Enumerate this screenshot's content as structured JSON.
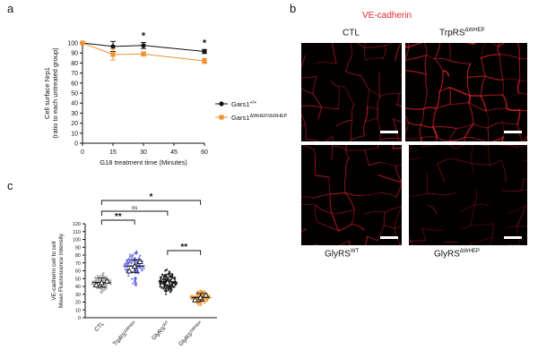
{
  "panels": {
    "a": {
      "letter": "a"
    },
    "b": {
      "letter": "b",
      "title": "VE-cadherin",
      "title_color": "#e3262b"
    },
    "c": {
      "letter": "c"
    }
  },
  "micrographs": {
    "labels": [
      {
        "base": "CTL",
        "sup": ""
      },
      {
        "base": "TrpRS",
        "sup": "ΔWHEP"
      },
      {
        "base": "GlyRS",
        "sup": "WT"
      },
      {
        "base": "GlyRS",
        "sup": "ΔWHEP"
      }
    ],
    "signal_color": "#d4202a"
  },
  "chart_data": [
    {
      "type": "line",
      "xlabel": "G18 treatment time (Minutes)",
      "ylabel_lines": [
        "Cell surface Nrp1",
        "(ratio to each untreated group)"
      ],
      "xlim": [
        0,
        60
      ],
      "ylim": [
        0,
        100
      ],
      "xticks": [
        0,
        15,
        30,
        45,
        60
      ],
      "yticks": [
        0,
        10,
        20,
        30,
        40,
        50,
        60,
        70,
        80,
        90,
        100
      ],
      "x": [
        0,
        15,
        30,
        60
      ],
      "series": [
        {
          "name": "Gars1",
          "name_sup": "+/+",
          "color": "#111111",
          "marker": "circle",
          "values": [
            100,
            96.5,
            97.5,
            91.5
          ],
          "errors": [
            0,
            5,
            3,
            2
          ]
        },
        {
          "name": "Gars1",
          "name_sup": "ΔWHEP/ΔWHEP",
          "color": "#f0922e",
          "marker": "square",
          "values": [
            100,
            88.5,
            89,
            82
          ],
          "errors": [
            0,
            5.5,
            2,
            2.5
          ]
        }
      ],
      "significance": [
        {
          "x": 30,
          "label": "*"
        },
        {
          "x": 60,
          "label": "*"
        }
      ],
      "grid": false,
      "legend_position": "right"
    },
    {
      "type": "scatter",
      "ylabel_lines": [
        "VE-cadherin cell to cell",
        "Mean Fluorescence Intensity"
      ],
      "ylim": [
        0,
        120
      ],
      "yticks": [
        0,
        10,
        20,
        30,
        40,
        50,
        60,
        70,
        80,
        90,
        100,
        110,
        120
      ],
      "categories": [
        {
          "base": "CTL",
          "sup": ""
        },
        {
          "base": "TrpRS",
          "sup": "ΔWHEP"
        },
        {
          "base": "GlyRS",
          "sup": "WT"
        },
        {
          "base": "GlyRS",
          "sup": "ΔWHEP"
        }
      ],
      "groups": [
        {
          "color": "#a7a7a7",
          "mean": 45,
          "sd": 6,
          "spread": 8,
          "n": 90,
          "replicate_means": [
            42,
            45,
            47
          ]
        },
        {
          "color": "#5b5fe8",
          "mean": 66,
          "sd": 8,
          "spread": 14,
          "n": 110,
          "replicate_means": [
            60,
            66,
            72
          ]
        },
        {
          "color": "#1a1a1a",
          "mean": 46,
          "sd": 6,
          "spread": 9,
          "n": 130,
          "replicate_means": [
            42,
            45,
            49
          ]
        },
        {
          "color": "#f0922e",
          "mean": 26,
          "sd": 5,
          "spread": 6,
          "n": 110,
          "replicate_means": [
            23,
            26,
            29
          ]
        }
      ],
      "comparisons": [
        {
          "from": 0,
          "to": 3,
          "label": "*"
        },
        {
          "from": 0,
          "to": 2,
          "label": "ns"
        },
        {
          "from": 0,
          "to": 1,
          "label": "**"
        },
        {
          "from": 2,
          "to": 3,
          "label": "**"
        }
      ]
    }
  ]
}
